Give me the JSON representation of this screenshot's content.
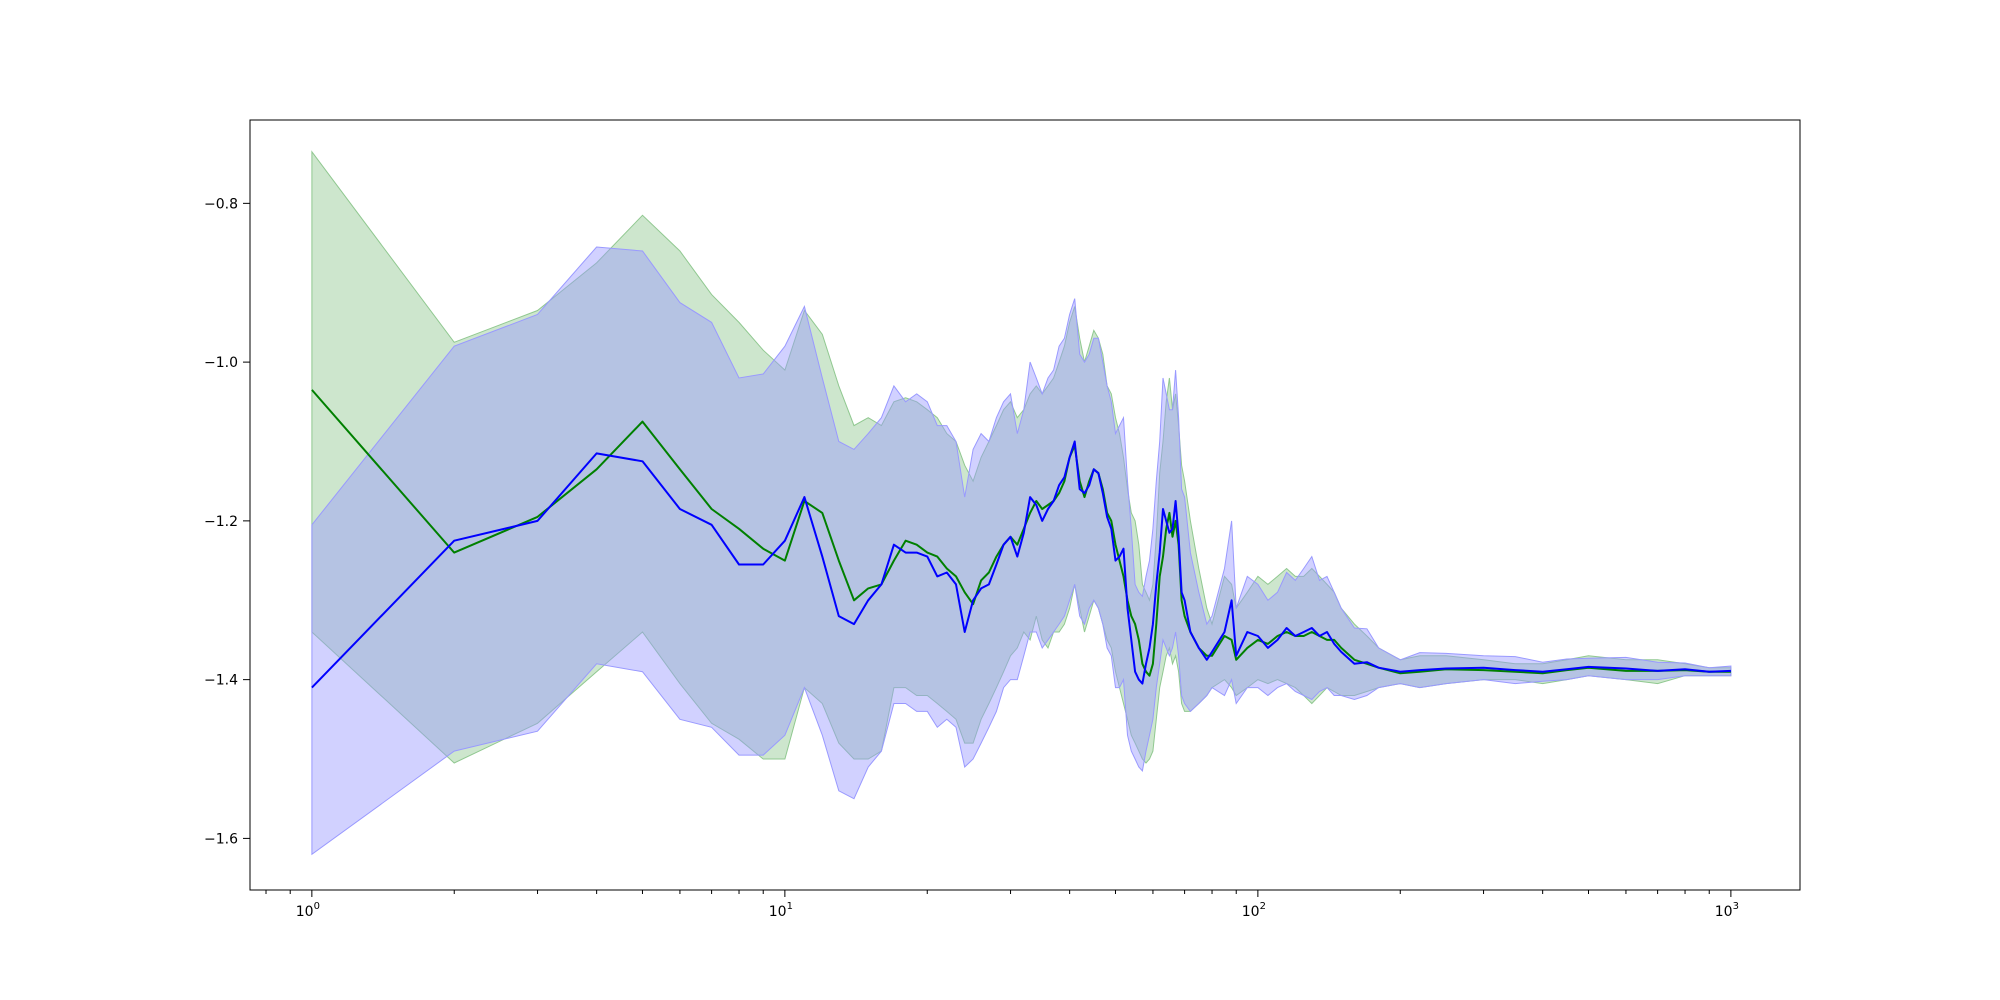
{
  "chart_data": {
    "type": "line",
    "title": "",
    "xlabel": "",
    "ylabel": "",
    "xscale": "log",
    "xlim": [
      0.74,
      1400
    ],
    "ylim": [
      -1.665,
      -0.695
    ],
    "grid": false,
    "legend": "none",
    "x_ticks": [
      {
        "value": 1,
        "base": "10",
        "exp": "0"
      },
      {
        "value": 10,
        "base": "10",
        "exp": "1"
      },
      {
        "value": 100,
        "base": "10",
        "exp": "2"
      },
      {
        "value": 1000,
        "base": "10",
        "exp": "3"
      }
    ],
    "y_ticks": [
      {
        "value": -0.8,
        "label": "−0.8"
      },
      {
        "value": -1.0,
        "label": "−1.0"
      },
      {
        "value": -1.2,
        "label": "−1.2"
      },
      {
        "value": -1.4,
        "label": "−1.4"
      },
      {
        "value": -1.6,
        "label": "−1.6"
      }
    ],
    "series": [
      {
        "color": "#008000",
        "band_color": "#90c890",
        "x": [
          1,
          2,
          3,
          4,
          5,
          6,
          7,
          8,
          9,
          10,
          11,
          12,
          13,
          14,
          15,
          16,
          17,
          18,
          19,
          20,
          21,
          22,
          23,
          24,
          25,
          26,
          27,
          28,
          29,
          30,
          31,
          32,
          33,
          34,
          35,
          36,
          37,
          38,
          39,
          40,
          41,
          42,
          43,
          44,
          45,
          46,
          47,
          48,
          49,
          50,
          51,
          52,
          53,
          54,
          55,
          56,
          57,
          58,
          59,
          60,
          61,
          62,
          63,
          64,
          65,
          66,
          67,
          68,
          69,
          70,
          72,
          75,
          78,
          80,
          85,
          88,
          90,
          95,
          100,
          105,
          110,
          115,
          120,
          125,
          130,
          135,
          140,
          145,
          150,
          160,
          170,
          180,
          200,
          220,
          250,
          300,
          350,
          400,
          450,
          500,
          600,
          700,
          800,
          900,
          1000
        ],
        "y": [
          -1.035,
          -1.24,
          -1.195,
          -1.135,
          -1.075,
          -1.135,
          -1.185,
          -1.21,
          -1.235,
          -1.25,
          -1.175,
          -1.19,
          -1.25,
          -1.3,
          -1.285,
          -1.28,
          -1.25,
          -1.225,
          -1.23,
          -1.24,
          -1.245,
          -1.26,
          -1.27,
          -1.29,
          -1.305,
          -1.275,
          -1.265,
          -1.245,
          -1.23,
          -1.22,
          -1.23,
          -1.21,
          -1.19,
          -1.175,
          -1.185,
          -1.18,
          -1.175,
          -1.165,
          -1.15,
          -1.12,
          -1.105,
          -1.15,
          -1.17,
          -1.15,
          -1.135,
          -1.14,
          -1.16,
          -1.19,
          -1.2,
          -1.23,
          -1.25,
          -1.27,
          -1.3,
          -1.32,
          -1.33,
          -1.35,
          -1.38,
          -1.39,
          -1.395,
          -1.38,
          -1.33,
          -1.27,
          -1.245,
          -1.21,
          -1.19,
          -1.22,
          -1.2,
          -1.23,
          -1.3,
          -1.32,
          -1.34,
          -1.36,
          -1.37,
          -1.37,
          -1.345,
          -1.35,
          -1.375,
          -1.36,
          -1.35,
          -1.355,
          -1.345,
          -1.34,
          -1.345,
          -1.345,
          -1.34,
          -1.345,
          -1.35,
          -1.35,
          -1.36,
          -1.375,
          -1.38,
          -1.385,
          -1.392,
          -1.39,
          -1.387,
          -1.388,
          -1.39,
          -1.392,
          -1.388,
          -1.385,
          -1.389,
          -1.389,
          -1.388,
          -1.39,
          -1.39
        ],
        "lower": [
          -1.34,
          -1.505,
          -1.455,
          -1.39,
          -1.34,
          -1.405,
          -1.455,
          -1.475,
          -1.5,
          -1.5,
          -1.41,
          -1.43,
          -1.48,
          -1.5,
          -1.5,
          -1.49,
          -1.41,
          -1.41,
          -1.42,
          -1.42,
          -1.43,
          -1.44,
          -1.45,
          -1.48,
          -1.48,
          -1.45,
          -1.43,
          -1.41,
          -1.39,
          -1.37,
          -1.36,
          -1.34,
          -1.35,
          -1.32,
          -1.35,
          -1.36,
          -1.34,
          -1.34,
          -1.33,
          -1.31,
          -1.28,
          -1.31,
          -1.34,
          -1.32,
          -1.3,
          -1.31,
          -1.33,
          -1.35,
          -1.36,
          -1.39,
          -1.41,
          -1.43,
          -1.45,
          -1.47,
          -1.48,
          -1.49,
          -1.5,
          -1.505,
          -1.5,
          -1.49,
          -1.45,
          -1.41,
          -1.39,
          -1.37,
          -1.36,
          -1.38,
          -1.37,
          -1.39,
          -1.43,
          -1.44,
          -1.44,
          -1.43,
          -1.42,
          -1.41,
          -1.4,
          -1.41,
          -1.42,
          -1.41,
          -1.4,
          -1.405,
          -1.4,
          -1.405,
          -1.41,
          -1.42,
          -1.43,
          -1.42,
          -1.41,
          -1.415,
          -1.42,
          -1.42,
          -1.415,
          -1.41,
          -1.405,
          -1.41,
          -1.405,
          -1.4,
          -1.4,
          -1.405,
          -1.4,
          -1.395,
          -1.4,
          -1.405,
          -1.395,
          -1.395,
          -1.395
        ],
        "upper": [
          -0.735,
          -0.975,
          -0.935,
          -0.875,
          -0.815,
          -0.86,
          -0.915,
          -0.95,
          -0.985,
          -1.01,
          -0.935,
          -0.965,
          -1.03,
          -1.08,
          -1.07,
          -1.08,
          -1.05,
          -1.045,
          -1.05,
          -1.06,
          -1.07,
          -1.09,
          -1.1,
          -1.13,
          -1.15,
          -1.12,
          -1.1,
          -1.08,
          -1.06,
          -1.05,
          -1.07,
          -1.06,
          -1.04,
          -1.03,
          -1.04,
          -1.03,
          -1.02,
          -1.0,
          -0.98,
          -0.95,
          -0.93,
          -0.97,
          -1.0,
          -0.98,
          -0.96,
          -0.97,
          -0.99,
          -1.03,
          -1.04,
          -1.07,
          -1.09,
          -1.12,
          -1.16,
          -1.19,
          -1.2,
          -1.23,
          -1.28,
          -1.29,
          -1.3,
          -1.28,
          -1.22,
          -1.14,
          -1.1,
          -1.05,
          -1.02,
          -1.06,
          -1.04,
          -1.08,
          -1.13,
          -1.15,
          -1.2,
          -1.26,
          -1.31,
          -1.33,
          -1.27,
          -1.28,
          -1.31,
          -1.29,
          -1.27,
          -1.28,
          -1.27,
          -1.26,
          -1.27,
          -1.27,
          -1.26,
          -1.27,
          -1.28,
          -1.29,
          -1.31,
          -1.33,
          -1.345,
          -1.36,
          -1.375,
          -1.37,
          -1.37,
          -1.375,
          -1.38,
          -1.38,
          -1.375,
          -1.37,
          -1.375,
          -1.375,
          -1.38,
          -1.385,
          -1.385
        ]
      },
      {
        "color": "#0000ff",
        "band_color": "#9999ff",
        "x": [
          1,
          2,
          3,
          4,
          5,
          6,
          7,
          8,
          9,
          10,
          11,
          12,
          13,
          14,
          15,
          16,
          17,
          18,
          19,
          20,
          21,
          22,
          23,
          24,
          25,
          26,
          27,
          28,
          29,
          30,
          31,
          32,
          33,
          34,
          35,
          36,
          37,
          38,
          39,
          40,
          41,
          42,
          43,
          44,
          45,
          46,
          47,
          48,
          49,
          50,
          51,
          52,
          53,
          54,
          55,
          56,
          57,
          58,
          59,
          60,
          61,
          62,
          63,
          64,
          65,
          66,
          67,
          68,
          69,
          70,
          72,
          75,
          78,
          80,
          85,
          88,
          90,
          95,
          100,
          105,
          110,
          115,
          120,
          125,
          130,
          135,
          140,
          145,
          150,
          160,
          170,
          180,
          200,
          220,
          250,
          300,
          350,
          400,
          450,
          500,
          600,
          700,
          800,
          900,
          1000
        ],
        "y": [
          -1.41,
          -1.225,
          -1.2,
          -1.115,
          -1.125,
          -1.185,
          -1.205,
          -1.255,
          -1.255,
          -1.225,
          -1.17,
          -1.245,
          -1.32,
          -1.33,
          -1.3,
          -1.28,
          -1.23,
          -1.24,
          -1.24,
          -1.245,
          -1.27,
          -1.265,
          -1.28,
          -1.34,
          -1.3,
          -1.285,
          -1.28,
          -1.255,
          -1.23,
          -1.22,
          -1.245,
          -1.215,
          -1.17,
          -1.18,
          -1.2,
          -1.185,
          -1.175,
          -1.155,
          -1.145,
          -1.12,
          -1.1,
          -1.16,
          -1.165,
          -1.155,
          -1.135,
          -1.14,
          -1.165,
          -1.195,
          -1.21,
          -1.25,
          -1.245,
          -1.235,
          -1.31,
          -1.35,
          -1.39,
          -1.4,
          -1.405,
          -1.38,
          -1.36,
          -1.33,
          -1.28,
          -1.24,
          -1.185,
          -1.2,
          -1.215,
          -1.21,
          -1.175,
          -1.22,
          -1.29,
          -1.3,
          -1.34,
          -1.36,
          -1.375,
          -1.365,
          -1.34,
          -1.3,
          -1.37,
          -1.34,
          -1.345,
          -1.36,
          -1.35,
          -1.335,
          -1.345,
          -1.34,
          -1.335,
          -1.345,
          -1.34,
          -1.355,
          -1.365,
          -1.38,
          -1.378,
          -1.385,
          -1.39,
          -1.388,
          -1.386,
          -1.385,
          -1.388,
          -1.39,
          -1.387,
          -1.384,
          -1.386,
          -1.389,
          -1.387,
          -1.39,
          -1.389
        ],
        "lower": [
          -1.62,
          -1.49,
          -1.465,
          -1.38,
          -1.39,
          -1.45,
          -1.46,
          -1.495,
          -1.495,
          -1.47,
          -1.41,
          -1.47,
          -1.54,
          -1.55,
          -1.51,
          -1.49,
          -1.43,
          -1.43,
          -1.44,
          -1.44,
          -1.46,
          -1.45,
          -1.46,
          -1.51,
          -1.5,
          -1.48,
          -1.46,
          -1.44,
          -1.41,
          -1.4,
          -1.4,
          -1.37,
          -1.34,
          -1.34,
          -1.36,
          -1.35,
          -1.34,
          -1.33,
          -1.32,
          -1.3,
          -1.28,
          -1.32,
          -1.33,
          -1.31,
          -1.3,
          -1.31,
          -1.33,
          -1.36,
          -1.37,
          -1.41,
          -1.41,
          -1.4,
          -1.47,
          -1.49,
          -1.5,
          -1.51,
          -1.515,
          -1.49,
          -1.47,
          -1.45,
          -1.41,
          -1.38,
          -1.35,
          -1.36,
          -1.37,
          -1.36,
          -1.34,
          -1.37,
          -1.42,
          -1.43,
          -1.44,
          -1.43,
          -1.42,
          -1.41,
          -1.42,
          -1.4,
          -1.43,
          -1.41,
          -1.41,
          -1.42,
          -1.41,
          -1.405,
          -1.415,
          -1.42,
          -1.425,
          -1.415,
          -1.41,
          -1.42,
          -1.42,
          -1.425,
          -1.42,
          -1.41,
          -1.405,
          -1.41,
          -1.405,
          -1.4,
          -1.405,
          -1.402,
          -1.4,
          -1.395,
          -1.4,
          -1.4,
          -1.395,
          -1.395,
          -1.395
        ],
        "upper": [
          -1.205,
          -0.98,
          -0.94,
          -0.855,
          -0.86,
          -0.925,
          -0.95,
          -1.02,
          -1.015,
          -0.98,
          -0.93,
          -1.02,
          -1.1,
          -1.11,
          -1.09,
          -1.07,
          -1.03,
          -1.05,
          -1.04,
          -1.05,
          -1.08,
          -1.08,
          -1.1,
          -1.17,
          -1.11,
          -1.09,
          -1.1,
          -1.07,
          -1.05,
          -1.04,
          -1.09,
          -1.06,
          -1.0,
          -1.02,
          -1.04,
          -1.02,
          -1.01,
          -0.98,
          -0.97,
          -0.94,
          -0.92,
          -0.99,
          -1.0,
          -0.99,
          -0.97,
          -0.97,
          -1.0,
          -1.03,
          -1.05,
          -1.09,
          -1.08,
          -1.07,
          -1.15,
          -1.21,
          -1.28,
          -1.29,
          -1.295,
          -1.27,
          -1.25,
          -1.21,
          -1.15,
          -1.1,
          -1.02,
          -1.04,
          -1.06,
          -1.06,
          -1.01,
          -1.07,
          -1.16,
          -1.17,
          -1.24,
          -1.29,
          -1.33,
          -1.32,
          -1.26,
          -1.2,
          -1.31,
          -1.27,
          -1.28,
          -1.3,
          -1.29,
          -1.265,
          -1.275,
          -1.26,
          -1.245,
          -1.275,
          -1.27,
          -1.29,
          -1.31,
          -1.335,
          -1.336,
          -1.36,
          -1.375,
          -1.366,
          -1.367,
          -1.37,
          -1.371,
          -1.378,
          -1.374,
          -1.373,
          -1.372,
          -1.378,
          -1.379,
          -1.385,
          -1.383
        ]
      }
    ]
  }
}
